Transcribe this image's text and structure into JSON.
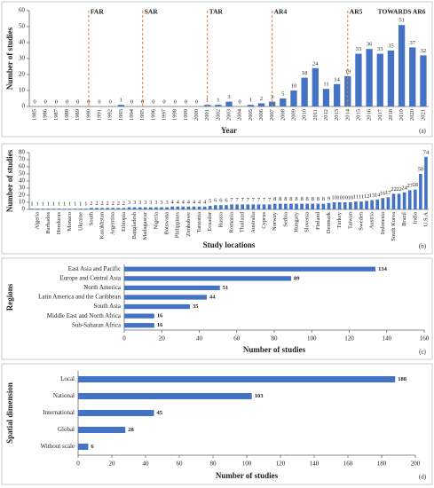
{
  "chart_data": [
    {
      "type": "bar",
      "panel_label": "(a)",
      "x_label": "Year",
      "y_label": "Number of studies",
      "categories": [
        "1985",
        "1986",
        "1987",
        "1988",
        "1989",
        "1990",
        "1991",
        "1992",
        "1993",
        "1994",
        "1995",
        "1996",
        "1997",
        "1998",
        "1999",
        "2000",
        "2001",
        "2002",
        "2003",
        "2004",
        "2005",
        "2006",
        "2007",
        "2008",
        "2009",
        "2010",
        "2011",
        "2012",
        "2013",
        "2014",
        "2015",
        "2016",
        "2017",
        "2018",
        "2019",
        "2020",
        "2021"
      ],
      "values": [
        0,
        0,
        0,
        0,
        0,
        0,
        0,
        0,
        1,
        0,
        0,
        0,
        0,
        0,
        0,
        0,
        1,
        1,
        3,
        0,
        1,
        2,
        3,
        5,
        10,
        18,
        24,
        11,
        14,
        19,
        33,
        36,
        33,
        35,
        51,
        37,
        32
      ],
      "color": "#4472c4",
      "ylim": [
        0,
        60
      ],
      "yticks": [
        0,
        10,
        20,
        30,
        40,
        50,
        60
      ],
      "annotations": [
        {
          "text": "FAR",
          "at": "1990",
          "dashed": true
        },
        {
          "text": "SAR",
          "at": "1995",
          "dashed": true
        },
        {
          "text": "TAR",
          "at": "2001",
          "dashed": true
        },
        {
          "text": "AR4",
          "at": "2007",
          "dashed": true
        },
        {
          "text": "AR5",
          "at": "2014",
          "dashed": true
        },
        {
          "text": "TOWARDS AR6",
          "at": "2019",
          "dashed": false
        }
      ],
      "annotation_line_color": "#ed7d31"
    },
    {
      "type": "bar",
      "panel_label": "(b)",
      "x_label": "Study locations",
      "y_label": "Number of studies",
      "categories": [
        null,
        "Algeria",
        null,
        "Barbados",
        null,
        "Honduras",
        null,
        "Monaco",
        null,
        "Ukraine",
        null,
        "South",
        null,
        "Kazakhstan",
        null,
        "Argentina",
        null,
        "Ethiopia",
        null,
        "Bangladesh",
        null,
        "Madagascar",
        null,
        "Nigeria",
        null,
        "Botswana",
        null,
        "Philippines",
        null,
        "Zimbabwe",
        null,
        "Tanzania",
        null,
        "Ecuador",
        null,
        "Russia",
        null,
        "Romania",
        null,
        "Thailand",
        null,
        "Australia",
        null,
        "Cyprus",
        null,
        "Norway",
        null,
        "Serbia",
        null,
        "Hungary",
        null,
        "Slovenia",
        null,
        "Finland",
        null,
        "Denmark",
        null,
        "Turkey",
        null,
        "Taiwan",
        null,
        "Sweden",
        null,
        "Austria",
        null,
        "Indonesia",
        null,
        "South Korea",
        null,
        "Brazil",
        null,
        "India",
        null,
        "U.S.A"
      ],
      "values": [
        1,
        1,
        1,
        1,
        1,
        1,
        1,
        1,
        1,
        1,
        1,
        2,
        2,
        2,
        2,
        2,
        2,
        2,
        3,
        3,
        3,
        3,
        3,
        3,
        3,
        3,
        4,
        4,
        4,
        4,
        4,
        4,
        4,
        5,
        6,
        6,
        6,
        7,
        7,
        7,
        7,
        7,
        7,
        7,
        7,
        8,
        8,
        8,
        8,
        8,
        8,
        8,
        8,
        8,
        8,
        9,
        10,
        10,
        10,
        10,
        11,
        11,
        12,
        13,
        14,
        16,
        17,
        22,
        22,
        24,
        27,
        28,
        50,
        74
      ],
      "color": "#4472c4",
      "ylim": [
        0,
        80
      ],
      "yticks": [
        0,
        10,
        20,
        30,
        40,
        50,
        60,
        70,
        80
      ]
    },
    {
      "type": "hbar",
      "panel_label": "(c)",
      "x_label": "Number of studies",
      "y_label": "Regions",
      "categories": [
        "East Asia and Pacific",
        "Europe and Central Asia",
        "North America",
        "Latin America and the Caribbean",
        "South Asia",
        "Middle East and North Africa",
        "Sub-Saharan Africa"
      ],
      "values": [
        134,
        89,
        51,
        44,
        35,
        16,
        16
      ],
      "color": "#4472c4",
      "xlim": [
        0,
        160
      ],
      "xticks": [
        0,
        20,
        40,
        60,
        80,
        100,
        120,
        140,
        160
      ]
    },
    {
      "type": "hbar",
      "panel_label": "(d)",
      "x_label": "Number of studies",
      "y_label": "Spatial dimension",
      "categories": [
        "Local",
        "National",
        "International",
        "Global",
        "Without scale"
      ],
      "values": [
        188,
        103,
        45,
        28,
        6
      ],
      "color": "#4472c4",
      "xlim": [
        0,
        200
      ],
      "xticks": [
        0,
        20,
        40,
        60,
        80,
        100,
        120,
        140,
        160,
        180,
        200
      ]
    }
  ]
}
